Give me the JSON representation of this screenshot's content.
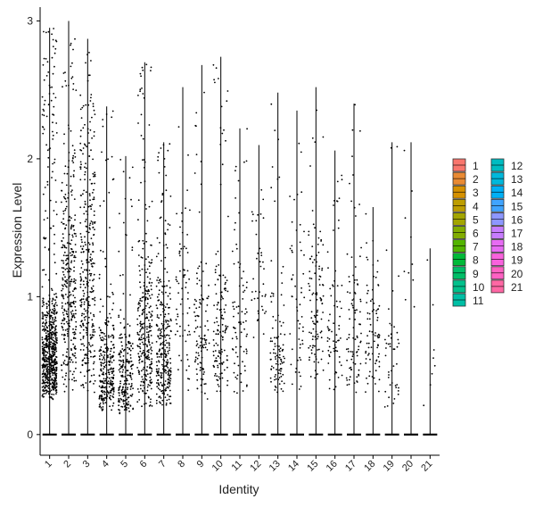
{
  "chart_data": {
    "type": "violin",
    "xlabel": "Identity",
    "ylabel": "Expression Level",
    "ylim": [
      -0.15,
      3.1
    ],
    "yticks": [
      0,
      1,
      2,
      3
    ],
    "legend_position": "right",
    "categories": [
      "1",
      "2",
      "3",
      "4",
      "5",
      "6",
      "7",
      "8",
      "9",
      "10",
      "11",
      "12",
      "13",
      "14",
      "15",
      "16",
      "17",
      "18",
      "19",
      "20",
      "21"
    ],
    "colors": [
      "#F8766D",
      "#E98A33",
      "#D69100",
      "#BD9D00",
      "#A3A500",
      "#82AD00",
      "#53B400",
      "#00BA38",
      "#00BE67",
      "#00C08B",
      "#00BFA5",
      "#00BCC1",
      "#00B8DB",
      "#00B0F6",
      "#40A4FF",
      "#8D97FF",
      "#C77CFF",
      "#E76BF3",
      "#F962DD",
      "#FF61C3",
      "#FF67A4"
    ],
    "series": [
      {
        "name": "1",
        "max": 2.95,
        "dense_range": [
          0.25,
          1.1
        ],
        "n_points": 700
      },
      {
        "name": "2",
        "max": 3.0,
        "dense_range": [
          0.3,
          2.3
        ],
        "n_points": 340
      },
      {
        "name": "3",
        "max": 2.87,
        "dense_range": [
          0.3,
          2.55
        ],
        "n_points": 340
      },
      {
        "name": "4",
        "max": 2.38,
        "dense_range": [
          0.15,
          0.9
        ],
        "n_points": 290
      },
      {
        "name": "5",
        "max": 2.02,
        "dense_range": [
          0.15,
          0.9
        ],
        "n_points": 220
      },
      {
        "name": "6",
        "max": 2.7,
        "dense_range": [
          0.2,
          1.5
        ],
        "n_points": 300
      },
      {
        "name": "7",
        "max": 2.12,
        "dense_range": [
          0.2,
          1.2
        ],
        "n_points": 300
      },
      {
        "name": "8",
        "max": 2.52,
        "dense_range": [
          0.3,
          1.9
        ],
        "n_points": 70
      },
      {
        "name": "9",
        "max": 2.68,
        "dense_range": [
          0.2,
          1.4
        ],
        "n_points": 110
      },
      {
        "name": "10",
        "max": 2.74,
        "dense_range": [
          0.3,
          1.4
        ],
        "n_points": 140
      },
      {
        "name": "11",
        "max": 2.22,
        "dense_range": [
          0.3,
          1.5
        ],
        "n_points": 80
      },
      {
        "name": "12",
        "max": 2.1,
        "dense_range": [
          0.6,
          2.0
        ],
        "n_points": 40
      },
      {
        "name": "13",
        "max": 2.48,
        "dense_range": [
          0.3,
          1.1
        ],
        "n_points": 100
      },
      {
        "name": "14",
        "max": 2.35,
        "dense_range": [
          0.3,
          1.9
        ],
        "n_points": 55
      },
      {
        "name": "15",
        "max": 2.52,
        "dense_range": [
          0.4,
          1.7
        ],
        "n_points": 110
      },
      {
        "name": "16",
        "max": 2.06,
        "dense_range": [
          0.3,
          1.4
        ],
        "n_points": 70
      },
      {
        "name": "17",
        "max": 2.4,
        "dense_range": [
          0.3,
          1.3
        ],
        "n_points": 90
      },
      {
        "name": "18",
        "max": 1.65,
        "dense_range": [
          0.3,
          1.3
        ],
        "n_points": 80
      },
      {
        "name": "19",
        "max": 2.12,
        "dense_range": [
          0.2,
          1.0
        ],
        "n_points": 45
      },
      {
        "name": "20",
        "max": 2.12,
        "dense_range": [
          0.5,
          1.9
        ],
        "n_points": 10
      },
      {
        "name": "21",
        "max": 1.35,
        "dense_range": [
          0.2,
          1.0
        ],
        "n_points": 8
      }
    ]
  }
}
